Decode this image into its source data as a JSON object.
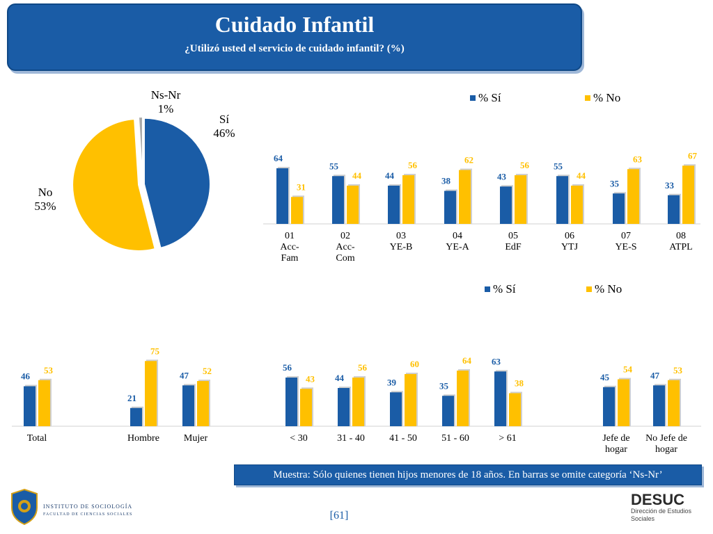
{
  "header": {
    "title": "Cuidado Infantil",
    "subtitle": "¿Utilizó usted el servicio de cuidado infantil? (%)"
  },
  "colors": {
    "si": "#1a5ca6",
    "no": "#ffc000",
    "nsnr": "#a9a9a9",
    "header_bg": "#1a5ca6"
  },
  "chart_data": [
    {
      "type": "pie",
      "slices": [
        {
          "label": "Sí",
          "value": 46,
          "value_label": "46%"
        },
        {
          "label": "No",
          "value": 53,
          "value_label": "53%"
        },
        {
          "label": "Ns-Nr",
          "value": 1,
          "value_label": "1%"
        }
      ]
    },
    {
      "type": "bar",
      "categories": [
        [
          "01",
          "Acc-",
          "Fam"
        ],
        [
          "02",
          "Acc-",
          "Com"
        ],
        [
          "03",
          "YE-B"
        ],
        [
          "04",
          "YE-A"
        ],
        [
          "05",
          "EdF"
        ],
        [
          "06",
          "YTJ"
        ],
        [
          "07",
          "YE-S"
        ],
        [
          "08",
          "ATPL"
        ]
      ],
      "series": [
        {
          "name": "% Sí",
          "values": [
            64,
            55,
            44,
            38,
            43,
            55,
            35,
            33
          ]
        },
        {
          "name": "% No",
          "values": [
            31,
            44,
            56,
            62,
            56,
            44,
            63,
            67
          ]
        }
      ],
      "legend": "top"
    },
    {
      "type": "bar",
      "categories": [
        [
          "Total"
        ],
        [
          "Hombre"
        ],
        [
          "Mujer"
        ],
        [
          "< 30"
        ],
        [
          "31 - 40"
        ],
        [
          "41 - 50"
        ],
        [
          "51 - 60"
        ],
        [
          "> 61"
        ],
        [
          "Jefe de",
          "hogar"
        ],
        [
          "No Jefe de",
          "hogar"
        ]
      ],
      "series": [
        {
          "name": "% Sí",
          "values": [
            46,
            21,
            47,
            56,
            44,
            39,
            35,
            63,
            45,
            47
          ]
        },
        {
          "name": "% No",
          "values": [
            53,
            75,
            52,
            43,
            56,
            60,
            64,
            38,
            54,
            53
          ]
        }
      ],
      "legend": "top"
    }
  ],
  "footer": {
    "note": "Muestra: Sólo quienes tienen hijos menores de 18 años. En barras se omite categoría ‘Ns-Nr’",
    "page": "[61]",
    "institute_name": "INSTITUTO DE SOCIOLOGÍA",
    "institute_sub": "FACULTAD DE CIENCIAS SOCIALES",
    "desuc_logo": "DESUC",
    "desuc_sub": "Dirección de Estudios Sociales"
  }
}
